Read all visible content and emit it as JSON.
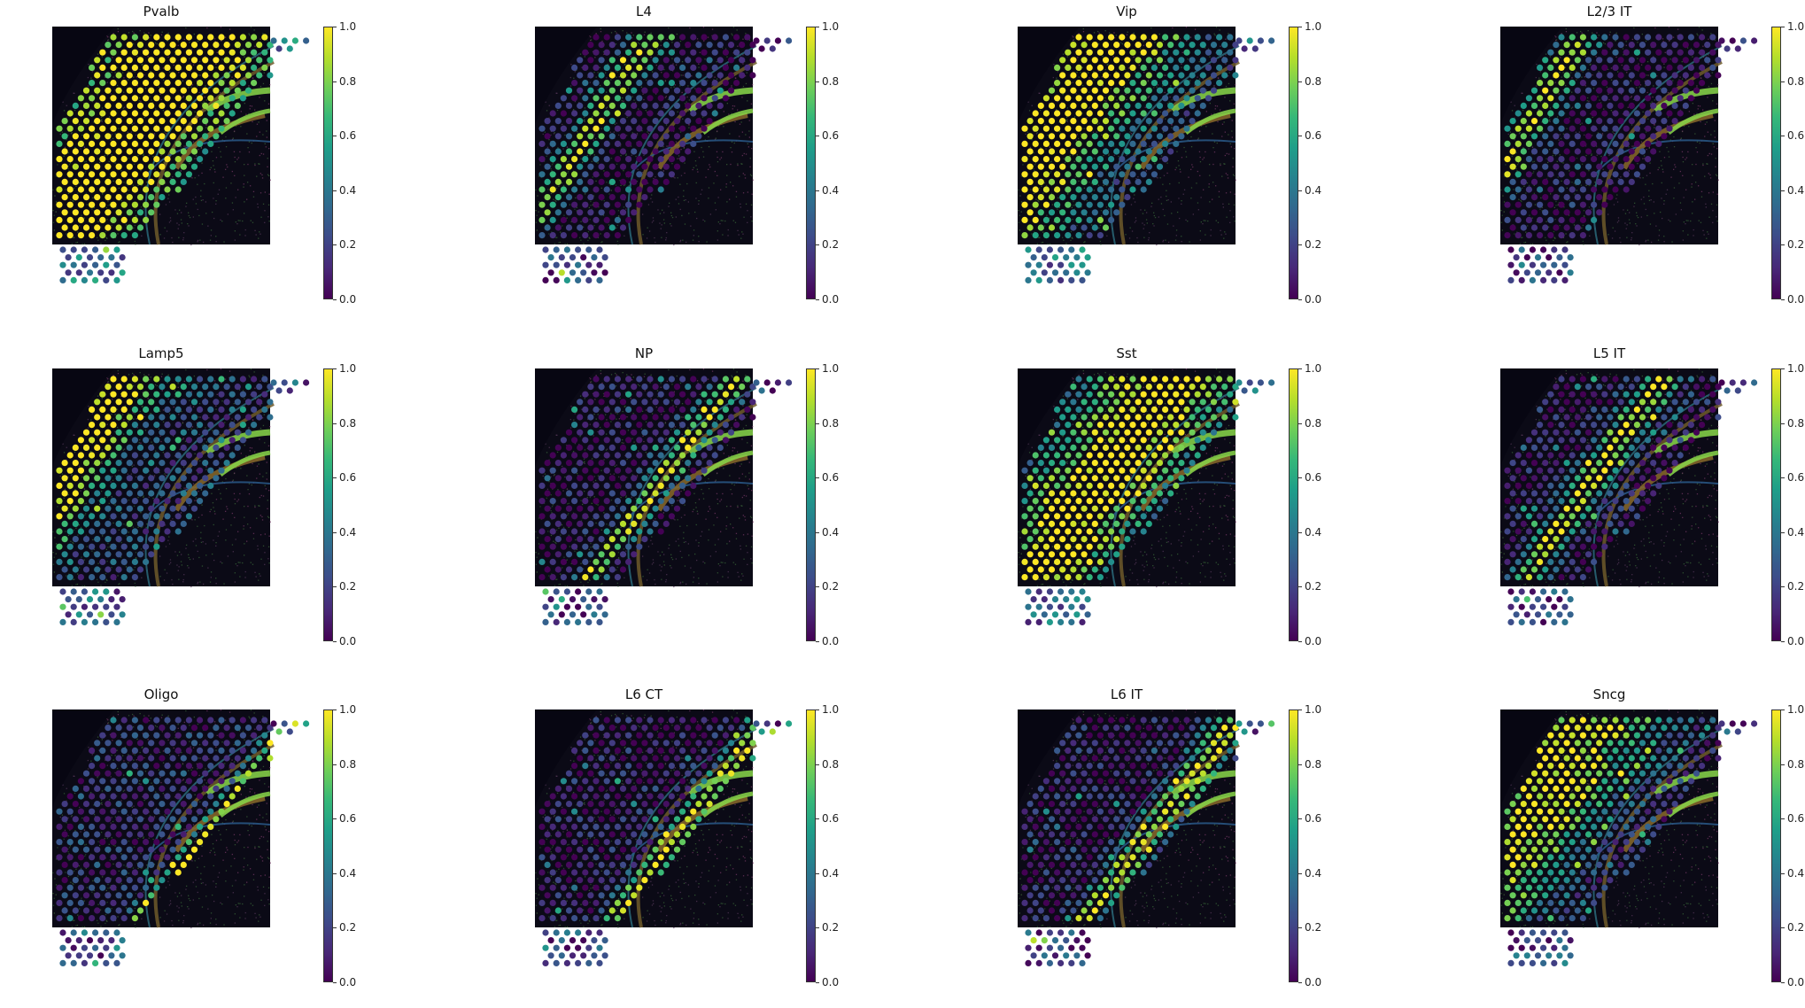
{
  "colorbar": {
    "ticks": [
      "0.0",
      "0.2",
      "0.4",
      "0.6",
      "0.8",
      "1.0"
    ],
    "cmap": [
      "#440154",
      "#482878",
      "#3e4a89",
      "#31688e",
      "#26828e",
      "#1f9e89",
      "#35b779",
      "#6ece58",
      "#b5de2b",
      "#fde725"
    ]
  },
  "panels": [
    {
      "title": "Pvalb"
    },
    {
      "title": "L4"
    },
    {
      "title": "Vip"
    },
    {
      "title": "L2/3 IT"
    },
    {
      "title": "Lamp5"
    },
    {
      "title": "NP"
    },
    {
      "title": "Sst"
    },
    {
      "title": "L5 IT"
    },
    {
      "title": "Oligo"
    },
    {
      "title": "L6 CT"
    },
    {
      "title": "L6 IT"
    },
    {
      "title": "Sncg"
    }
  ]
}
